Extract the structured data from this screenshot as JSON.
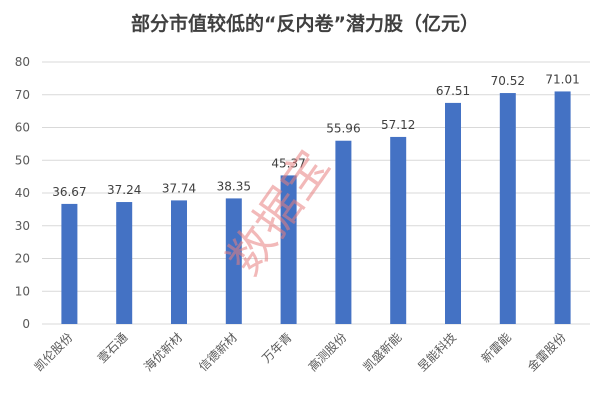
{
  "chart_data": {
    "type": "bar",
    "title": "部分市值较低的“反内卷”潜力股（亿元）",
    "categories": [
      "凯伦股份",
      "壹石通",
      "海优新材",
      "信德新材",
      "万年青",
      "高测股份",
      "凯盛新能",
      "昱能科技",
      "新雷能",
      "金雷股份"
    ],
    "values": [
      36.67,
      37.24,
      37.74,
      38.35,
      45.37,
      55.96,
      57.12,
      67.51,
      70.52,
      71.01
    ],
    "value_labels": [
      "36.67",
      "37.24",
      "37.74",
      "38.35",
      "45.37",
      "55.96",
      "57.12",
      "67.51",
      "70.52",
      "71.01"
    ],
    "ylim": [
      0,
      80
    ],
    "yticks": [
      "0",
      "10",
      "20",
      "30",
      "40",
      "50",
      "60",
      "70",
      "80"
    ],
    "ytick_values": [
      0,
      10,
      20,
      30,
      40,
      50,
      60,
      70,
      80
    ],
    "grid": true,
    "legend": "none",
    "bar_color": "#4472c4",
    "grid_color": "#d9d9d9"
  },
  "watermark": "数据宝"
}
